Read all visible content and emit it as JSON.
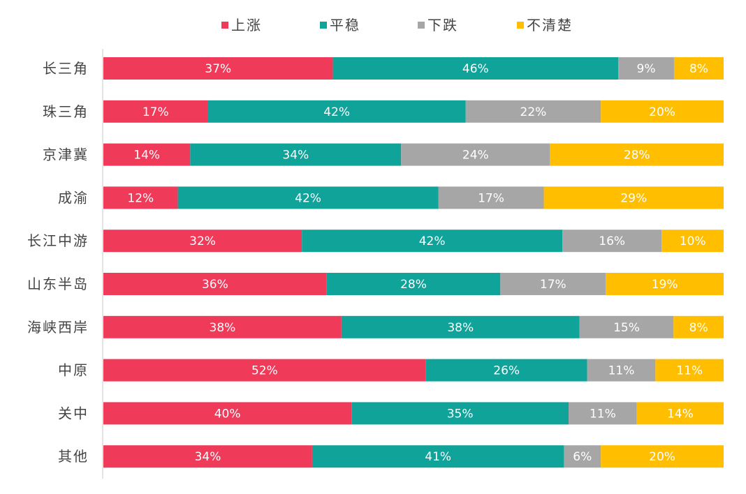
{
  "chart_data": {
    "type": "bar",
    "orientation": "horizontal",
    "stacked": true,
    "percent_stacked": true,
    "legend_position": "top",
    "grid": false,
    "xlim": [
      0,
      100
    ],
    "categories": [
      "长三角",
      "珠三角",
      "京津冀",
      "成渝",
      "长江中游",
      "山东半岛",
      "海峡西岸",
      "中原",
      "关中",
      "其他"
    ],
    "series": [
      {
        "name": "上涨",
        "color": "#f03a5a",
        "values": [
          37,
          17,
          14,
          12,
          32,
          36,
          38,
          52,
          40,
          34
        ]
      },
      {
        "name": "平稳",
        "color": "#0fa39a",
        "values": [
          46,
          42,
          34,
          42,
          42,
          28,
          38,
          26,
          35,
          41
        ]
      },
      {
        "name": "下跌",
        "color": "#a6a6a6",
        "values": [
          9,
          22,
          24,
          17,
          16,
          17,
          15,
          11,
          11,
          6
        ]
      },
      {
        "name": "不清楚",
        "color": "#ffbf00",
        "values": [
          8,
          20,
          28,
          29,
          10,
          19,
          8,
          11,
          14,
          20
        ]
      }
    ],
    "label_suffix": "%"
  }
}
